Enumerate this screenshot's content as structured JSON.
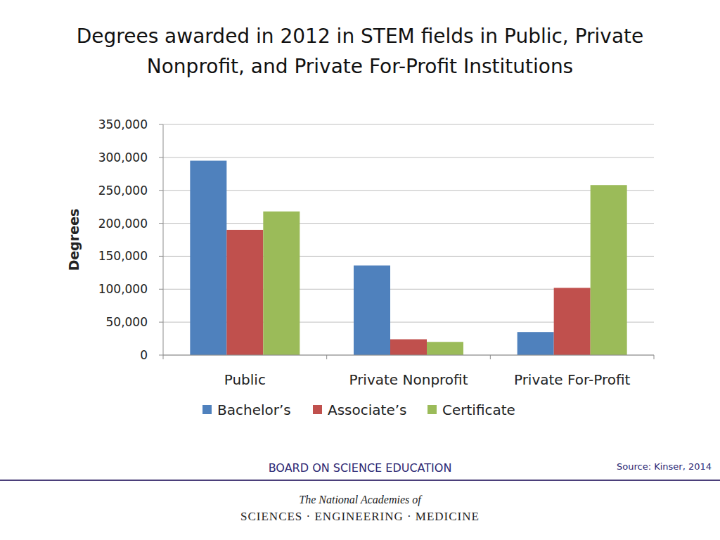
{
  "chart_data": {
    "type": "bar",
    "title": "Degrees awarded in 2012 in STEM fields in Public, Private Nonprofit, and Private For-Profit Institutions",
    "y_label": "Degrees",
    "categories": [
      "Public",
      "Private Nonprofit",
      "Private For-Profit"
    ],
    "series": [
      {
        "name": "Bachelor’s",
        "color": "#4f81bd",
        "values": [
          295000,
          136000,
          35000
        ]
      },
      {
        "name": "Associate’s",
        "color": "#c0504d",
        "values": [
          190000,
          24000,
          102000
        ]
      },
      {
        "name": "Certificate",
        "color": "#9bbb59",
        "values": [
          218000,
          20000,
          258000
        ]
      }
    ],
    "ylim": [
      0,
      350000
    ],
    "yticks": [
      0,
      {
        "value": 50000,
        "label": "50,000"
      },
      {
        "value": 100000,
        "label": "100,000"
      },
      {
        "value": 150000,
        "label": "150,000"
      },
      {
        "value": 200000,
        "label": "200,000"
      },
      {
        "value": 250000,
        "label": "250,000"
      },
      {
        "value": 300000,
        "label": "300,000"
      },
      {
        "value": 350000,
        "label": "350,000"
      }
    ],
    "grid": true,
    "legend": "bottom"
  },
  "footer": {
    "board": "BOARD ON SCIENCE EDUCATION",
    "source": "Source: Kinser, 2014",
    "logo_line1": "The National Academies of",
    "logo_line2": "SCIENCES · ENGINEERING · MEDICINE"
  }
}
